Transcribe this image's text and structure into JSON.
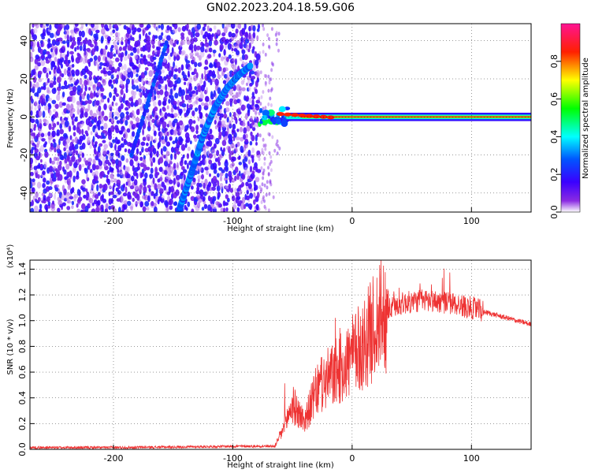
{
  "figure_title": "GN02.2023.204.18.59.G06",
  "chart_data": [
    {
      "type": "heatmap",
      "title": "",
      "xlabel": "Height of straight line (km)",
      "ylabel": "Frequency (Hz)",
      "xlim": [
        -270,
        150
      ],
      "ylim": [
        -50,
        49
      ],
      "xticks": [
        -200,
        -100,
        0,
        100
      ],
      "yticks": [
        -40,
        -20,
        0,
        20,
        40
      ],
      "colorbar": {
        "label": "Normalized spectral amplitude",
        "range": [
          0,
          1
        ],
        "ticks": [
          "0.0",
          "0.2",
          "0.4",
          "0.6",
          "0.8"
        ],
        "colormap": [
          "#ffffff",
          "#5a00ff",
          "#0000ff",
          "#00ffff",
          "#00ff00",
          "#ffff00",
          "#ff0000",
          "#ff1493"
        ]
      },
      "features": {
        "noise_region_x": [
          -270,
          -78
        ],
        "fading_region_x": [
          -78,
          -55
        ],
        "steady_tone_x": [
          -55,
          150
        ],
        "steady_tone_frequency_hz": 0,
        "drifting_tone": [
          {
            "x": -145,
            "y": -49
          },
          {
            "x": -135,
            "y": -30
          },
          {
            "x": -125,
            "y": -10
          },
          {
            "x": -115,
            "y": 5
          },
          {
            "x": -105,
            "y": 15
          },
          {
            "x": -95,
            "y": 22
          },
          {
            "x": -85,
            "y": 27
          }
        ],
        "faint_diagonal": [
          {
            "x": -185,
            "y": -20
          },
          {
            "x": -170,
            "y": 10
          },
          {
            "x": -155,
            "y": 40
          }
        ]
      }
    },
    {
      "type": "line",
      "title": "",
      "xlabel": "Height of straight line (km)",
      "ylabel": "SNR (10 * v/v)",
      "y_multiplier_label": "(x10⁴)",
      "xlim": [
        -270,
        150
      ],
      "ylim": [
        0,
        1.47
      ],
      "xticks": [
        -200,
        -100,
        0,
        100
      ],
      "yticks": [
        "0.0",
        "0.2",
        "0.4",
        "0.6",
        "0.8",
        "1.0",
        "1.2",
        "1.4"
      ],
      "color": "#ee3333",
      "envelope": [
        {
          "x": -270,
          "y": 0.01
        },
        {
          "x": -200,
          "y": 0.01
        },
        {
          "x": -140,
          "y": 0.015
        },
        {
          "x": -100,
          "y": 0.02
        },
        {
          "x": -65,
          "y": 0.02
        },
        {
          "x": -58,
          "y": 0.15
        },
        {
          "x": -50,
          "y": 0.35
        },
        {
          "x": -40,
          "y": 0.22
        },
        {
          "x": -30,
          "y": 0.45
        },
        {
          "x": -20,
          "y": 0.55
        },
        {
          "x": -10,
          "y": 0.62
        },
        {
          "x": 0,
          "y": 0.72
        },
        {
          "x": 10,
          "y": 0.82
        },
        {
          "x": 20,
          "y": 0.98
        },
        {
          "x": 30,
          "y": 1.08
        },
        {
          "x": 40,
          "y": 1.13
        },
        {
          "x": 60,
          "y": 1.16
        },
        {
          "x": 80,
          "y": 1.14
        },
        {
          "x": 100,
          "y": 1.1
        },
        {
          "x": 110,
          "y": 1.07
        },
        {
          "x": 130,
          "y": 1.02
        },
        {
          "x": 150,
          "y": 0.97
        }
      ]
    }
  ]
}
